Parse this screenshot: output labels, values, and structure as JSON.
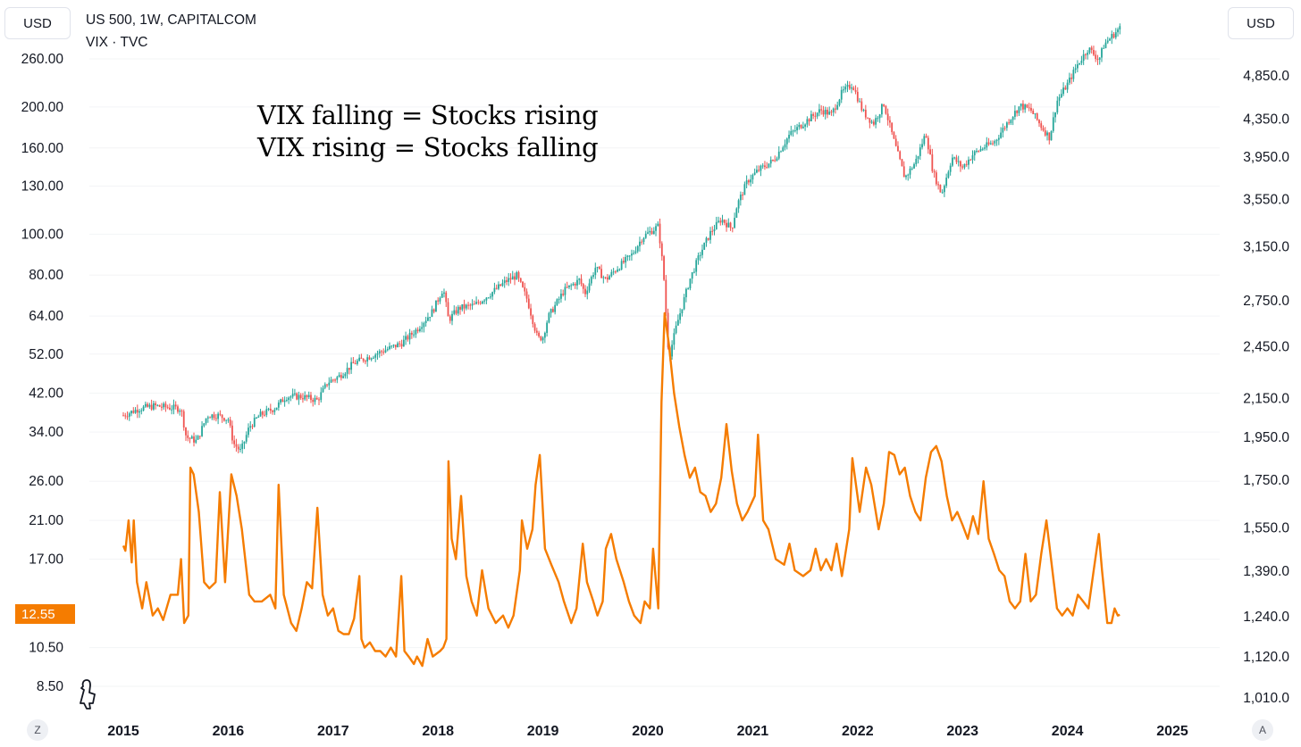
{
  "header": {
    "left_currency": "USD",
    "right_currency": "USD",
    "legend_line1": "US 500, 1W, CAPITALCOM",
    "legend_line2": "VIX · TVC"
  },
  "annotation": {
    "line1": "VIX falling = Stocks rising",
    "line2": "VIX rising = Stocks falling"
  },
  "footer": {
    "left_button": "Z",
    "right_button": "A"
  },
  "colors": {
    "vix_line": "#f57c00",
    "up_candle": "#26a69a",
    "down_candle": "#ef5350"
  },
  "chart_data": {
    "type": "line",
    "x_ticks": [
      "2015",
      "2016",
      "2017",
      "2018",
      "2019",
      "2020",
      "2021",
      "2022",
      "2023",
      "2024",
      "2025"
    ],
    "left_axis": {
      "label": "USD",
      "scale": "log",
      "ticks": [
        "260.00",
        "200.00",
        "160.00",
        "130.00",
        "100.00",
        "80.00",
        "64.00",
        "52.00",
        "42.00",
        "34.00",
        "26.00",
        "21.00",
        "17.00",
        "10.50",
        "8.50"
      ],
      "last_value_label": "12.55"
    },
    "right_axis": {
      "label": "USD",
      "scale": "log",
      "ticks": [
        "4,850.0",
        "4,350.0",
        "3,950.0",
        "3,550.0",
        "3,150.0",
        "2,750.0",
        "2,450.0",
        "2,150.0",
        "1,950.0",
        "1,750.0",
        "1,550.0",
        "1,390.0",
        "1,240.0",
        "1,120.0",
        "1,010.0"
      ]
    },
    "series": [
      {
        "name": "US 500",
        "kind": "candlestick",
        "axis": "right",
        "points": [
          [
            2015.0,
            2060
          ],
          [
            2015.15,
            2095
          ],
          [
            2015.3,
            2110
          ],
          [
            2015.45,
            2100
          ],
          [
            2015.55,
            2095
          ],
          [
            2015.6,
            1950
          ],
          [
            2015.7,
            1930
          ],
          [
            2015.8,
            2060
          ],
          [
            2015.9,
            2060
          ],
          [
            2016.0,
            2040
          ],
          [
            2016.05,
            1920
          ],
          [
            2016.12,
            1880
          ],
          [
            2016.2,
            2000
          ],
          [
            2016.3,
            2060
          ],
          [
            2016.45,
            2100
          ],
          [
            2016.55,
            2160
          ],
          [
            2016.7,
            2160
          ],
          [
            2016.85,
            2140
          ],
          [
            2016.95,
            2240
          ],
          [
            2017.05,
            2270
          ],
          [
            2017.2,
            2350
          ],
          [
            2017.35,
            2390
          ],
          [
            2017.5,
            2430
          ],
          [
            2017.65,
            2470
          ],
          [
            2017.8,
            2560
          ],
          [
            2017.95,
            2680
          ],
          [
            2018.05,
            2840
          ],
          [
            2018.1,
            2620
          ],
          [
            2018.2,
            2700
          ],
          [
            2018.35,
            2720
          ],
          [
            2018.5,
            2800
          ],
          [
            2018.65,
            2890
          ],
          [
            2018.75,
            2930
          ],
          [
            2018.85,
            2760
          ],
          [
            2018.95,
            2500
          ],
          [
            2019.0,
            2510
          ],
          [
            2019.05,
            2640
          ],
          [
            2019.2,
            2820
          ],
          [
            2019.35,
            2900
          ],
          [
            2019.4,
            2800
          ],
          [
            2019.5,
            2990
          ],
          [
            2019.6,
            2900
          ],
          [
            2019.7,
            2980
          ],
          [
            2019.85,
            3090
          ],
          [
            2019.95,
            3230
          ],
          [
            2020.05,
            3290
          ],
          [
            2020.1,
            3320
          ],
          [
            2020.15,
            2950
          ],
          [
            2020.2,
            2380
          ],
          [
            2020.28,
            2600
          ],
          [
            2020.4,
            2900
          ],
          [
            2020.5,
            3100
          ],
          [
            2020.6,
            3270
          ],
          [
            2020.7,
            3380
          ],
          [
            2020.8,
            3300
          ],
          [
            2020.85,
            3500
          ],
          [
            2020.95,
            3720
          ],
          [
            2021.05,
            3820
          ],
          [
            2021.2,
            3920
          ],
          [
            2021.35,
            4180
          ],
          [
            2021.5,
            4320
          ],
          [
            2021.65,
            4450
          ],
          [
            2021.75,
            4400
          ],
          [
            2021.85,
            4650
          ],
          [
            2021.95,
            4750
          ],
          [
            2022.05,
            4430
          ],
          [
            2022.15,
            4300
          ],
          [
            2022.25,
            4520
          ],
          [
            2022.35,
            4100
          ],
          [
            2022.45,
            3750
          ],
          [
            2022.55,
            3900
          ],
          [
            2022.65,
            4200
          ],
          [
            2022.72,
            3800
          ],
          [
            2022.8,
            3600
          ],
          [
            2022.9,
            3950
          ],
          [
            2023.0,
            3850
          ],
          [
            2023.1,
            3980
          ],
          [
            2023.2,
            4050
          ],
          [
            2023.3,
            4100
          ],
          [
            2023.45,
            4350
          ],
          [
            2023.55,
            4500
          ],
          [
            2023.65,
            4450
          ],
          [
            2023.75,
            4270
          ],
          [
            2023.83,
            4150
          ],
          [
            2023.9,
            4550
          ],
          [
            2024.0,
            4750
          ],
          [
            2024.1,
            5000
          ],
          [
            2024.2,
            5200
          ],
          [
            2024.3,
            5050
          ],
          [
            2024.35,
            5250
          ],
          [
            2024.45,
            5400
          ],
          [
            2024.5,
            5470
          ]
        ]
      },
      {
        "name": "VIX",
        "kind": "line",
        "axis": "left",
        "points": [
          [
            2015.0,
            18.3
          ],
          [
            2015.02,
            17.8
          ],
          [
            2015.05,
            21.0
          ],
          [
            2015.08,
            16.7
          ],
          [
            2015.1,
            21.0
          ],
          [
            2015.13,
            15.0
          ],
          [
            2015.18,
            13.0
          ],
          [
            2015.22,
            15.0
          ],
          [
            2015.28,
            12.5
          ],
          [
            2015.33,
            13.0
          ],
          [
            2015.38,
            12.2
          ],
          [
            2015.45,
            14.0
          ],
          [
            2015.52,
            14.0
          ],
          [
            2015.55,
            17.0
          ],
          [
            2015.58,
            12.0
          ],
          [
            2015.62,
            12.5
          ],
          [
            2015.64,
            28.0
          ],
          [
            2015.67,
            27.0
          ],
          [
            2015.72,
            22.0
          ],
          [
            2015.77,
            15.0
          ],
          [
            2015.82,
            14.5
          ],
          [
            2015.88,
            15.0
          ],
          [
            2015.92,
            24.5
          ],
          [
            2015.97,
            15.0
          ],
          [
            2016.03,
            27.0
          ],
          [
            2016.08,
            24.0
          ],
          [
            2016.13,
            20.0
          ],
          [
            2016.2,
            14.0
          ],
          [
            2016.25,
            13.5
          ],
          [
            2016.32,
            13.5
          ],
          [
            2016.4,
            14.0
          ],
          [
            2016.45,
            13.0
          ],
          [
            2016.48,
            25.5
          ],
          [
            2016.53,
            14.0
          ],
          [
            2016.6,
            12.0
          ],
          [
            2016.65,
            11.5
          ],
          [
            2016.7,
            13.0
          ],
          [
            2016.75,
            15.0
          ],
          [
            2016.8,
            14.5
          ],
          [
            2016.85,
            22.5
          ],
          [
            2016.9,
            14.0
          ],
          [
            2016.95,
            12.5
          ],
          [
            2017.0,
            13.0
          ],
          [
            2017.05,
            11.5
          ],
          [
            2017.1,
            11.3
          ],
          [
            2017.15,
            11.3
          ],
          [
            2017.2,
            12.3
          ],
          [
            2017.25,
            15.5
          ],
          [
            2017.27,
            11.0
          ],
          [
            2017.3,
            10.5
          ],
          [
            2017.35,
            10.8
          ],
          [
            2017.4,
            10.3
          ],
          [
            2017.45,
            10.3
          ],
          [
            2017.5,
            10.0
          ],
          [
            2017.55,
            10.5
          ],
          [
            2017.6,
            10.0
          ],
          [
            2017.65,
            15.5
          ],
          [
            2017.68,
            10.3
          ],
          [
            2017.72,
            10.0
          ],
          [
            2017.77,
            9.6
          ],
          [
            2017.8,
            10.0
          ],
          [
            2017.85,
            9.5
          ],
          [
            2017.9,
            11.0
          ],
          [
            2017.95,
            10.0
          ],
          [
            2018.02,
            10.3
          ],
          [
            2018.05,
            10.5
          ],
          [
            2018.08,
            11.0
          ],
          [
            2018.1,
            29.0
          ],
          [
            2018.13,
            19.0
          ],
          [
            2018.17,
            17.0
          ],
          [
            2018.22,
            24.0
          ],
          [
            2018.27,
            15.5
          ],
          [
            2018.32,
            13.5
          ],
          [
            2018.37,
            12.5
          ],
          [
            2018.42,
            16.0
          ],
          [
            2018.48,
            13.0
          ],
          [
            2018.55,
            12.0
          ],
          [
            2018.62,
            12.5
          ],
          [
            2018.67,
            11.7
          ],
          [
            2018.72,
            12.5
          ],
          [
            2018.78,
            16.0
          ],
          [
            2018.8,
            21.0
          ],
          [
            2018.85,
            18.0
          ],
          [
            2018.9,
            20.0
          ],
          [
            2018.93,
            25.5
          ],
          [
            2018.97,
            30.0
          ],
          [
            2019.02,
            18.0
          ],
          [
            2019.08,
            16.5
          ],
          [
            2019.15,
            15.0
          ],
          [
            2019.2,
            13.5
          ],
          [
            2019.27,
            12.0
          ],
          [
            2019.32,
            13.0
          ],
          [
            2019.38,
            18.5
          ],
          [
            2019.42,
            15.0
          ],
          [
            2019.48,
            13.5
          ],
          [
            2019.52,
            12.5
          ],
          [
            2019.57,
            13.5
          ],
          [
            2019.6,
            18.0
          ],
          [
            2019.65,
            19.5
          ],
          [
            2019.7,
            17.0
          ],
          [
            2019.77,
            15.0
          ],
          [
            2019.82,
            13.5
          ],
          [
            2019.87,
            12.5
          ],
          [
            2019.93,
            12.0
          ],
          [
            2019.97,
            13.5
          ],
          [
            2020.02,
            13.0
          ],
          [
            2020.05,
            18.0
          ],
          [
            2020.1,
            13.0
          ],
          [
            2020.13,
            40.0
          ],
          [
            2020.16,
            65.0
          ],
          [
            2020.2,
            55.0
          ],
          [
            2020.25,
            42.0
          ],
          [
            2020.3,
            35.0
          ],
          [
            2020.35,
            30.0
          ],
          [
            2020.4,
            26.5
          ],
          [
            2020.45,
            28.0
          ],
          [
            2020.5,
            24.5
          ],
          [
            2020.55,
            24.0
          ],
          [
            2020.6,
            22.0
          ],
          [
            2020.65,
            23.0
          ],
          [
            2020.7,
            26.5
          ],
          [
            2020.75,
            35.5
          ],
          [
            2020.8,
            27.5
          ],
          [
            2020.85,
            23.0
          ],
          [
            2020.9,
            21.0
          ],
          [
            2020.95,
            22.0
          ],
          [
            2021.02,
            24.0
          ],
          [
            2021.05,
            33.5
          ],
          [
            2021.1,
            21.0
          ],
          [
            2021.15,
            20.0
          ],
          [
            2021.22,
            17.0
          ],
          [
            2021.3,
            16.5
          ],
          [
            2021.35,
            18.5
          ],
          [
            2021.4,
            16.0
          ],
          [
            2021.48,
            15.5
          ],
          [
            2021.55,
            16.0
          ],
          [
            2021.6,
            18.0
          ],
          [
            2021.65,
            16.0
          ],
          [
            2021.7,
            17.0
          ],
          [
            2021.75,
            16.0
          ],
          [
            2021.8,
            18.5
          ],
          [
            2021.85,
            15.5
          ],
          [
            2021.92,
            20.0
          ],
          [
            2021.95,
            29.5
          ],
          [
            2022.02,
            22.0
          ],
          [
            2022.08,
            28.0
          ],
          [
            2022.13,
            25.5
          ],
          [
            2022.2,
            20.0
          ],
          [
            2022.25,
            23.0
          ],
          [
            2022.3,
            30.5
          ],
          [
            2022.35,
            30.0
          ],
          [
            2022.4,
            27.0
          ],
          [
            2022.45,
            28.0
          ],
          [
            2022.5,
            24.0
          ],
          [
            2022.55,
            22.0
          ],
          [
            2022.6,
            21.0
          ],
          [
            2022.65,
            26.5
          ],
          [
            2022.7,
            30.5
          ],
          [
            2022.75,
            31.5
          ],
          [
            2022.8,
            29.0
          ],
          [
            2022.85,
            24.0
          ],
          [
            2022.9,
            21.0
          ],
          [
            2022.95,
            22.0
          ],
          [
            2023.0,
            20.5
          ],
          [
            2023.05,
            19.0
          ],
          [
            2023.1,
            21.5
          ],
          [
            2023.15,
            19.5
          ],
          [
            2023.2,
            26.0
          ],
          [
            2023.25,
            19.0
          ],
          [
            2023.3,
            17.5
          ],
          [
            2023.35,
            16.0
          ],
          [
            2023.4,
            15.5
          ],
          [
            2023.45,
            13.5
          ],
          [
            2023.5,
            13.0
          ],
          [
            2023.55,
            13.5
          ],
          [
            2023.6,
            17.5
          ],
          [
            2023.65,
            13.5
          ],
          [
            2023.7,
            14.0
          ],
          [
            2023.75,
            17.5
          ],
          [
            2023.8,
            21.0
          ],
          [
            2023.85,
            16.5
          ],
          [
            2023.9,
            13.0
          ],
          [
            2023.95,
            12.5
          ],
          [
            2024.0,
            13.0
          ],
          [
            2024.05,
            12.5
          ],
          [
            2024.1,
            14.0
          ],
          [
            2024.15,
            13.5
          ],
          [
            2024.2,
            13.0
          ],
          [
            2024.25,
            16.0
          ],
          [
            2024.3,
            19.5
          ],
          [
            2024.33,
            16.0
          ],
          [
            2024.38,
            12.0
          ],
          [
            2024.42,
            12.0
          ],
          [
            2024.45,
            13.0
          ],
          [
            2024.48,
            12.5
          ],
          [
            2024.5,
            12.55
          ]
        ]
      }
    ]
  }
}
